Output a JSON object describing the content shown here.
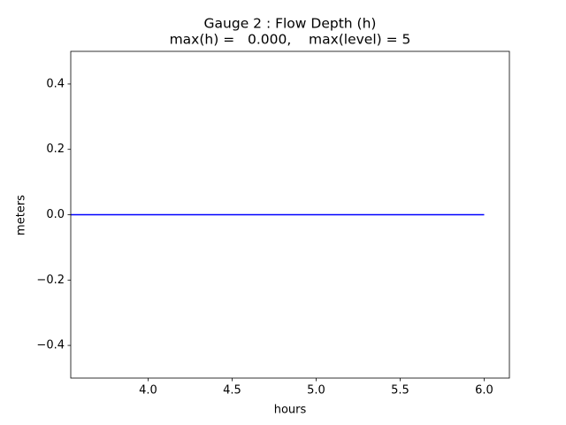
{
  "chart_data": {
    "type": "line",
    "title": "Gauge 2 : Flow Depth (h)",
    "subtitle": "max(h) =   0.000,    max(level) = 5",
    "xlabel": "hours",
    "ylabel": "meters",
    "x": [
      3.54,
      6.0
    ],
    "series": [
      {
        "color": "#0000ff",
        "values": [
          0,
          0
        ]
      }
    ],
    "xlim": [
      3.54,
      6.15
    ],
    "xticks": [
      {
        "value": 4,
        "label": "4.0"
      },
      4.5,
      {
        "value": 5,
        "label": "5.0"
      },
      5.5,
      {
        "value": 6,
        "label": "6.0"
      }
    ],
    "ylim": [
      -0.5,
      0.5
    ],
    "yticks": [
      {
        "value": -0.4,
        "label": "−0.4"
      },
      {
        "value": -0.2,
        "label": "−0.2"
      },
      {
        "value": 0,
        "label": "0.0"
      },
      0.2,
      0.4
    ],
    "grid": false
  }
}
